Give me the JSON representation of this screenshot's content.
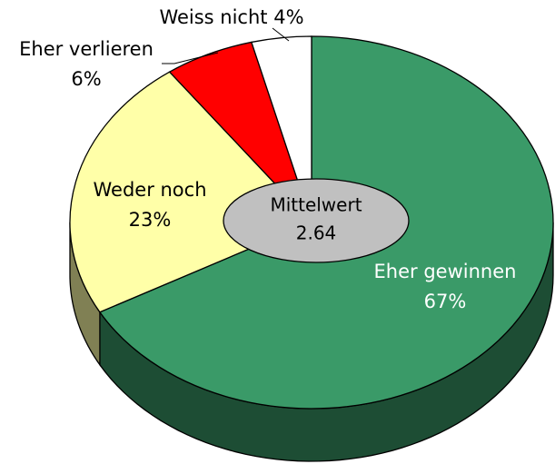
{
  "chart_data": {
    "type": "pie",
    "categories": [
      "Eher gewinnen",
      "Weder noch",
      "Eher verlieren",
      "Weiss nicht"
    ],
    "values": [
      67,
      23,
      6,
      4
    ],
    "value_labels": [
      "67%",
      "23%",
      "6%",
      "4%"
    ],
    "colors": [
      "#3a9a68",
      "#ffffa8",
      "#ff0000",
      "#ffffff"
    ],
    "annotation": {
      "label": "Mittelwert",
      "value": 2.64
    }
  }
}
